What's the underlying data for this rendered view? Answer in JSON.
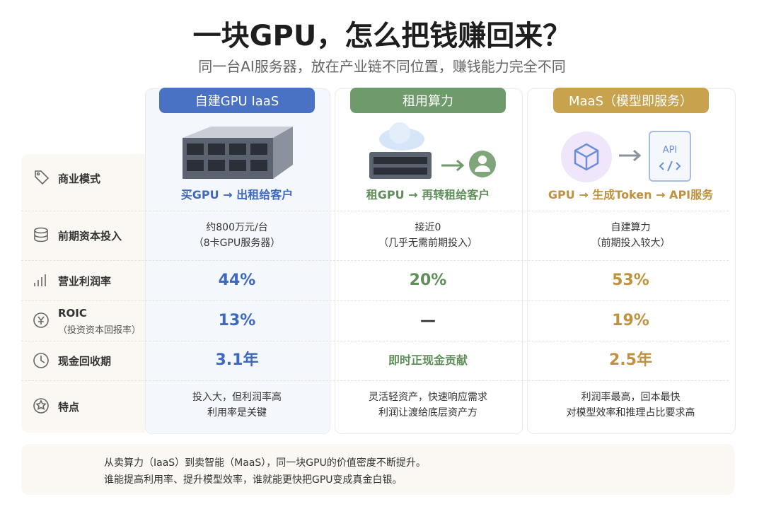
{
  "header": {
    "title": "一块GPU，怎么把钱赚回来？",
    "subtitle": "同一台AI服务器，放在产业链不同位置，赚钱能力完全不同"
  },
  "row_labels": [
    {
      "label": "商业模式"
    },
    {
      "label": "前期资本投入"
    },
    {
      "label": "营业利润率"
    },
    {
      "label": "ROIC",
      "sublabel": "（投资资本回报率）"
    },
    {
      "label": "现金回收期"
    },
    {
      "label": "特点"
    }
  ],
  "columns": [
    {
      "title": "自建GPU IaaS",
      "color": "#4a72c4",
      "text_color": "#3f68c0",
      "model": "买GPU → 出租给客户",
      "capex": [
        "约800万元/台",
        "（8卡GPU服务器）"
      ],
      "margin": "44%",
      "roic": "13%",
      "payback": "3.1年",
      "features": [
        "投入大，但利润率高",
        "利用率是关键"
      ]
    },
    {
      "title": "租用算力",
      "color": "#6f9a6b",
      "text_color": "#5f8f58",
      "model": "租GPU → 再转租给客户",
      "capex": [
        "接近0",
        "（几乎无需前期投入）"
      ],
      "margin": "20%",
      "roic": "—",
      "payback": "即时正现金贡献",
      "features": [
        "灵活轻资产，快速响应需求",
        "利润让渡给底层资产方"
      ]
    },
    {
      "title": "MaaS（模型即服务）",
      "color": "#c9a24e",
      "text_color": "#c0913e",
      "model": "GPU → 生成Token → API服务",
      "icon_label": "API",
      "capex": [
        "自建算力",
        "（前期投入较大）"
      ],
      "margin": "53%",
      "roic": "19%",
      "payback": "2.5年",
      "features": [
        "利润率最高，回本最快",
        "对模型效率和推理占比要求高"
      ]
    }
  ],
  "footer": {
    "lines": [
      "从卖算力（IaaS）到卖智能（MaaS），同一块GPU的价值密度不断提升。",
      "谁能提高利用率、提升模型效率，谁就能更快把GPU变成真金白银。"
    ]
  }
}
